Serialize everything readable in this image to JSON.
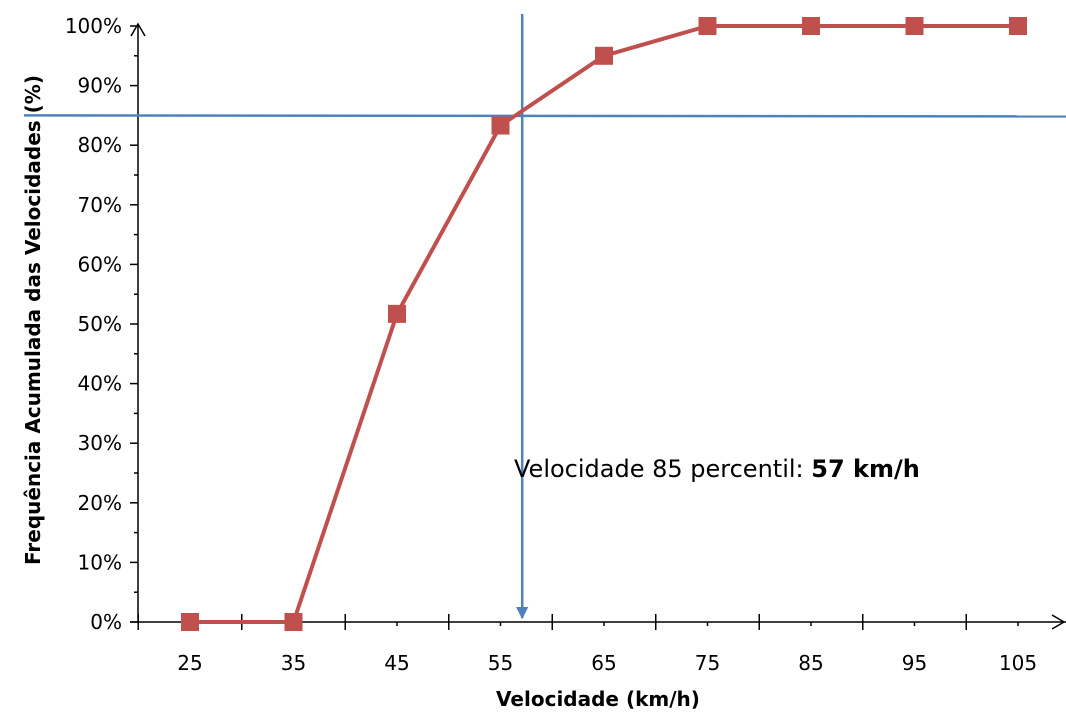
{
  "chart_data": {
    "type": "line",
    "title": "",
    "xlabel": "Velocidade  (km/h)",
    "ylabel": "Frequência Acumulada das Velocidades (%)",
    "x": [
      25,
      35,
      45,
      55,
      65,
      75,
      85,
      95,
      105
    ],
    "series": [
      {
        "values": [
          0,
          0,
          51.7,
          83.3,
          95,
          100,
          100,
          100,
          100
        ],
        "color": "#c0504d",
        "marker": "square"
      }
    ],
    "x_tick_labels": [
      "25",
      "35",
      "45",
      "55",
      "65",
      "75",
      "85",
      "95",
      "105"
    ],
    "y_tick_labels": [
      "0%",
      "10%",
      "20%",
      "30%",
      "40%",
      "50%",
      "60%",
      "70%",
      "80%",
      "90%",
      "100%"
    ],
    "ylim": [
      0,
      100
    ],
    "grid": false,
    "reference_lines": {
      "horizontal_percent": 85,
      "vertical_speed": 57,
      "color": "#4f81bd"
    },
    "annotation": {
      "prefix": "Velocidade 85 percentil: ",
      "value": "57 km/h"
    }
  }
}
